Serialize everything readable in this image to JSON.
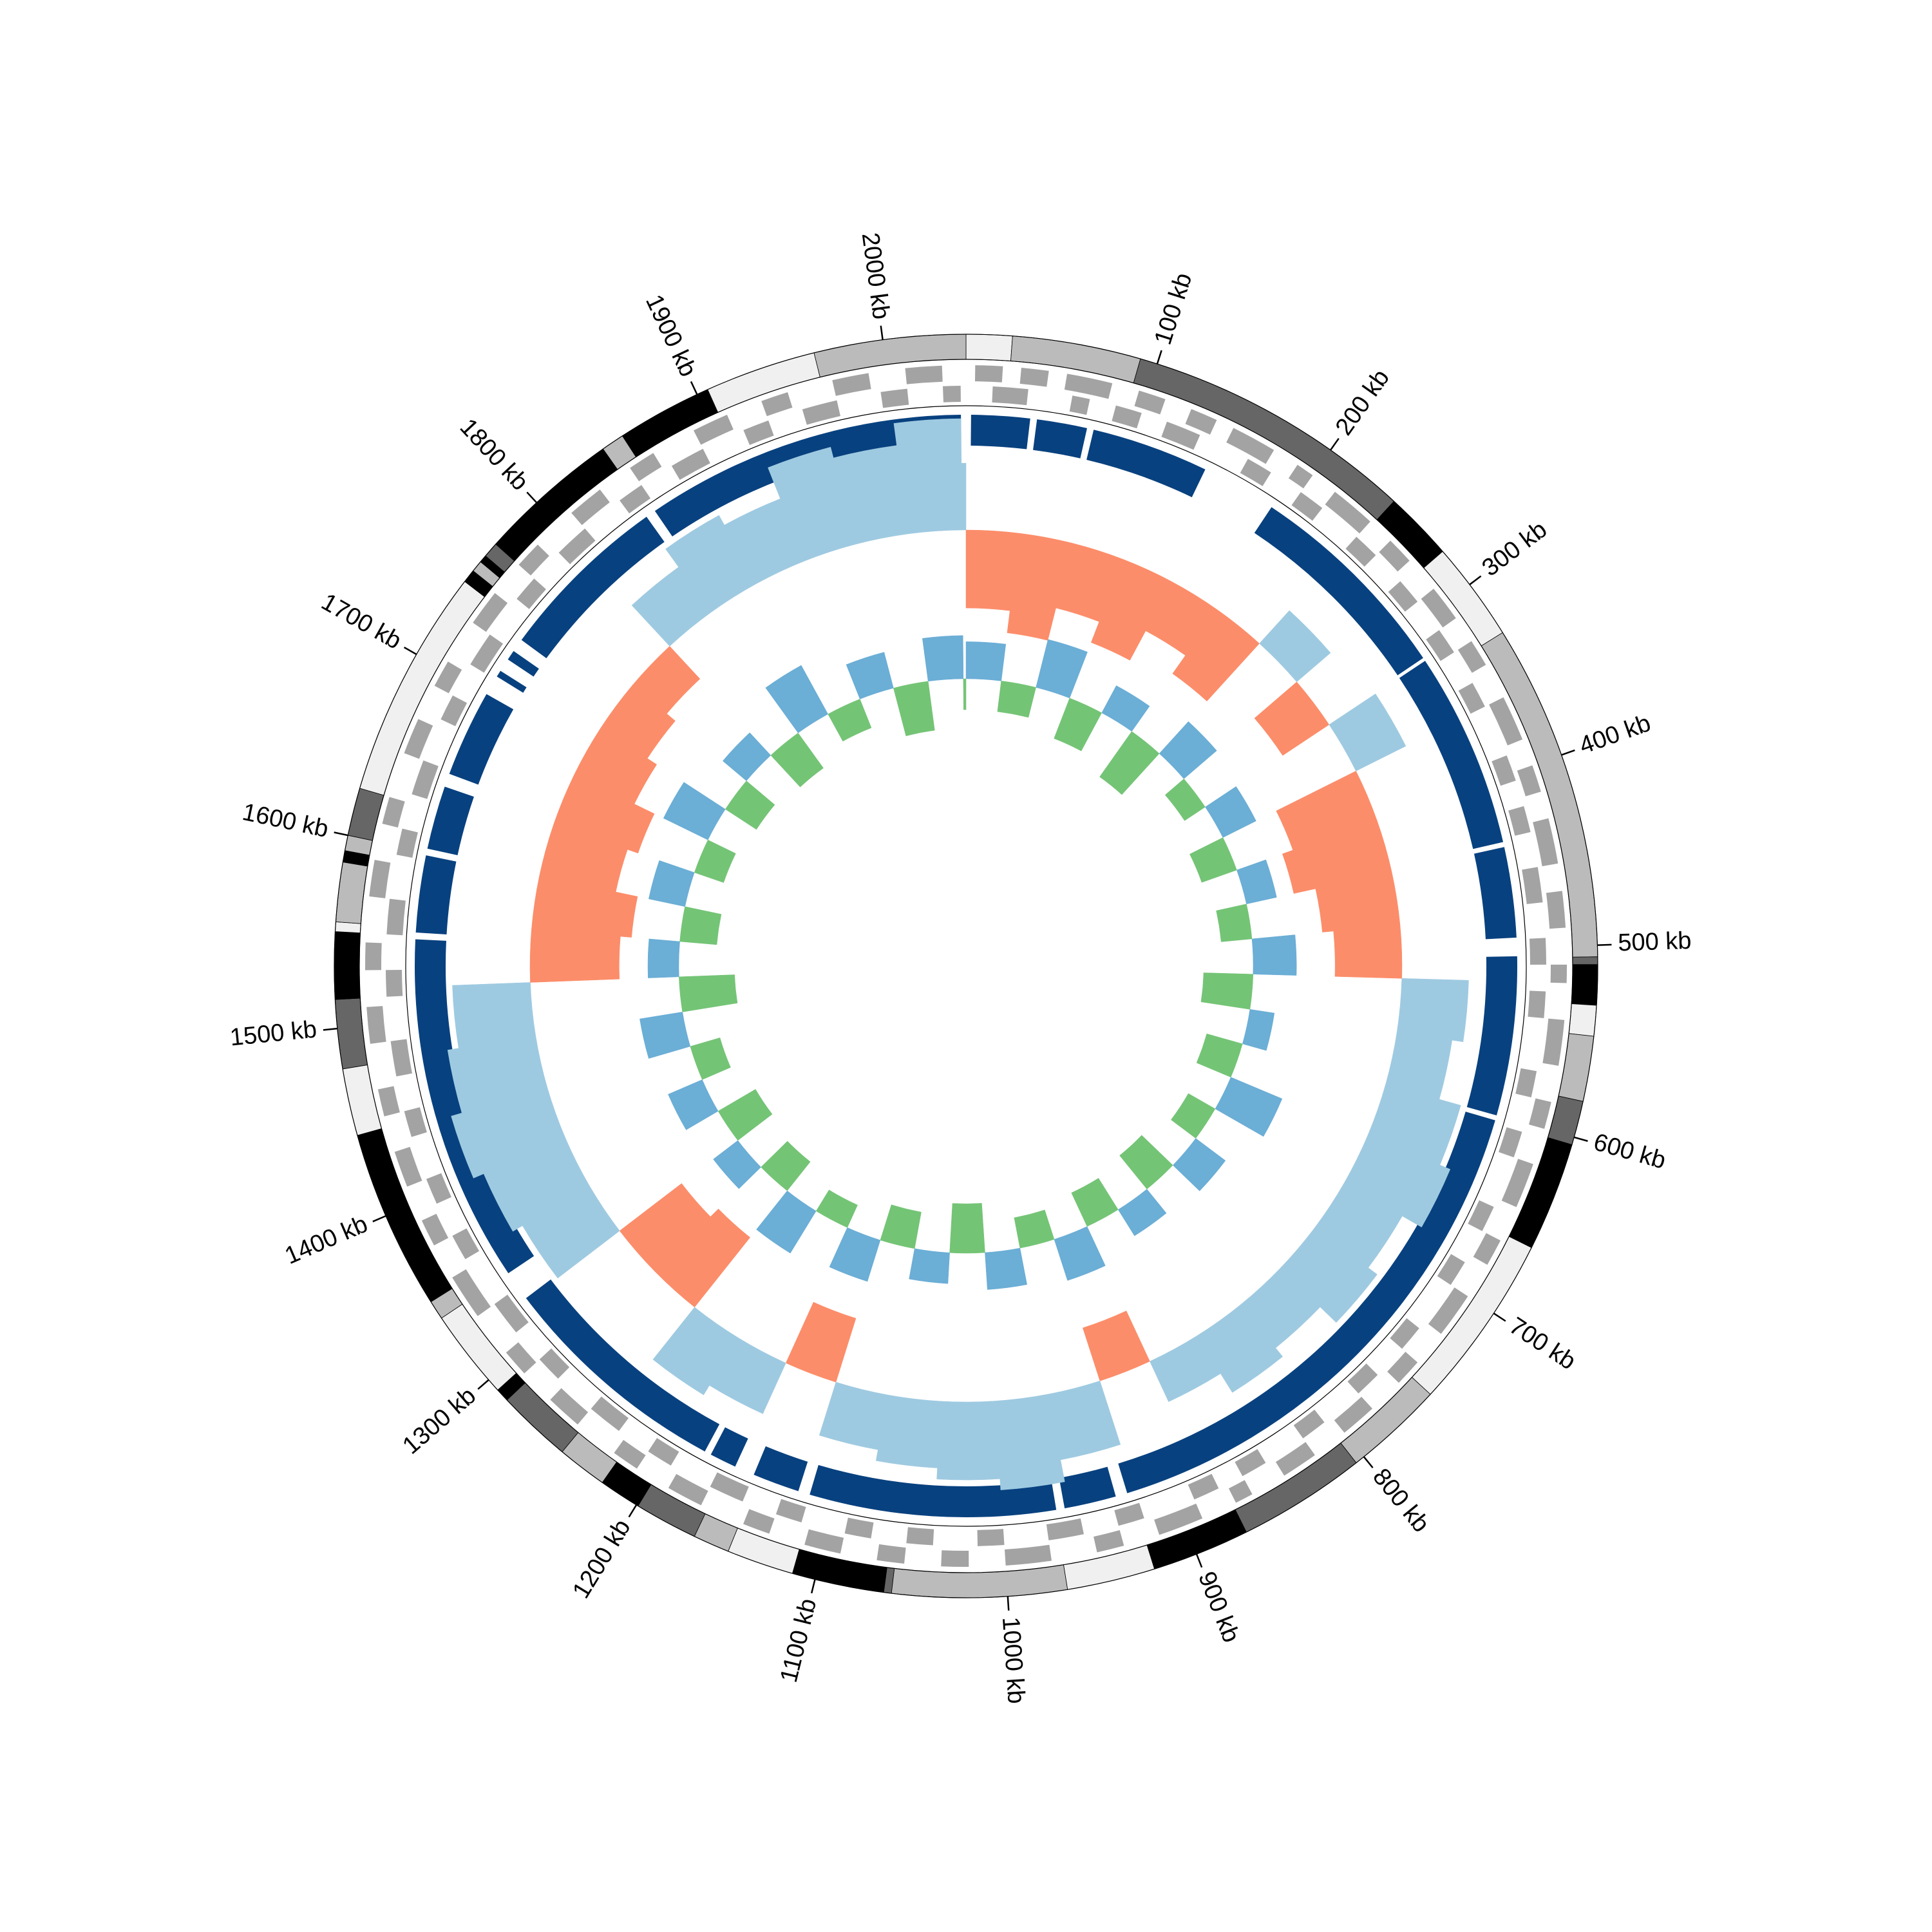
{
  "chart_data": {
    "type": "circos",
    "xlim": [
      0,
      2043
    ],
    "xticks": [
      {
        "value": 100,
        "label": "100 kb"
      },
      {
        "value": 200,
        "label": "200 kb"
      },
      {
        "value": 300,
        "label": "300 kb"
      },
      {
        "value": 400,
        "label": "400 kb"
      },
      {
        "value": 500,
        "label": "500 kb"
      },
      {
        "value": 600,
        "label": "600 kb"
      },
      {
        "value": 700,
        "label": "700 kb"
      },
      {
        "value": 800,
        "label": "800 kb"
      },
      {
        "value": 900,
        "label": "900 kb"
      },
      {
        "value": 1000,
        "label": "1000 kb"
      },
      {
        "value": 1100,
        "label": "1100 kb"
      },
      {
        "value": 1200,
        "label": "1200 kb"
      },
      {
        "value": 1300,
        "label": "1300 kb"
      },
      {
        "value": 1400,
        "label": "1400 kb"
      },
      {
        "value": 1500,
        "label": "1500 kb"
      },
      {
        "value": 1600,
        "label": "1600 kb"
      },
      {
        "value": 1700,
        "label": "1700 kb"
      },
      {
        "value": 1800,
        "label": "1800 kb"
      },
      {
        "value": 1900,
        "label": "1900 kb"
      },
      {
        "value": 2000,
        "label": "2000 kb"
      }
    ],
    "ideogram": [
      {
        "start": 0,
        "end": 24,
        "color": "#f0f0f0"
      },
      {
        "start": 24,
        "end": 91,
        "color": "#bbbbbb"
      },
      {
        "start": 91,
        "end": 242,
        "color": "#666666"
      },
      {
        "start": 242,
        "end": 278,
        "color": "#000000"
      },
      {
        "start": 278,
        "end": 330,
        "color": "#f0f0f0"
      },
      {
        "start": 330,
        "end": 506,
        "color": "#bbbbbb"
      },
      {
        "start": 506,
        "end": 510,
        "color": "#666666"
      },
      {
        "start": 510,
        "end": 531,
        "color": "#000000"
      },
      {
        "start": 531,
        "end": 547,
        "color": "#f0f0f0"
      },
      {
        "start": 547,
        "end": 581,
        "color": "#bbbbbb"
      },
      {
        "start": 581,
        "end": 604,
        "color": "#666666"
      },
      {
        "start": 604,
        "end": 661,
        "color": "#000000"
      },
      {
        "start": 661,
        "end": 753,
        "color": "#f0f0f0"
      },
      {
        "start": 753,
        "end": 805,
        "color": "#bbbbbb"
      },
      {
        "start": 805,
        "end": 872,
        "color": "#666666"
      },
      {
        "start": 872,
        "end": 923,
        "color": "#000000"
      },
      {
        "start": 923,
        "end": 969,
        "color": "#f0f0f0"
      },
      {
        "start": 969,
        "end": 1060,
        "color": "#bbbbbb"
      },
      {
        "start": 1060,
        "end": 1064,
        "color": "#666666"
      },
      {
        "start": 1064,
        "end": 1112,
        "color": "#000000"
      },
      {
        "start": 1112,
        "end": 1147,
        "color": "#f0f0f0"
      },
      {
        "start": 1147,
        "end": 1166,
        "color": "#bbbbbb"
      },
      {
        "start": 1166,
        "end": 1199,
        "color": "#666666"
      },
      {
        "start": 1199,
        "end": 1221,
        "color": "#000000"
      },
      {
        "start": 1221,
        "end": 1247,
        "color": "#bbbbbb"
      },
      {
        "start": 1247,
        "end": 1286,
        "color": "#666666"
      },
      {
        "start": 1286,
        "end": 1293,
        "color": "#000000"
      },
      {
        "start": 1293,
        "end": 1340,
        "color": "#f0f0f0"
      },
      {
        "start": 1340,
        "end": 1350,
        "color": "#bbbbbb"
      },
      {
        "start": 1350,
        "end": 1444,
        "color": "#000000"
      },
      {
        "start": 1444,
        "end": 1479,
        "color": "#f0f0f0"
      },
      {
        "start": 1479,
        "end": 1515,
        "color": "#666666"
      },
      {
        "start": 1515,
        "end": 1550,
        "color": "#000000"
      },
      {
        "start": 1550,
        "end": 1555,
        "color": "#f0f0f0"
      },
      {
        "start": 1555,
        "end": 1586,
        "color": "#bbbbbb"
      },
      {
        "start": 1586,
        "end": 1592,
        "color": "#000000"
      },
      {
        "start": 1592,
        "end": 1600,
        "color": "#bbbbbb"
      },
      {
        "start": 1600,
        "end": 1625,
        "color": "#666666"
      },
      {
        "start": 1625,
        "end": 1745,
        "color": "#f0f0f0"
      },
      {
        "start": 1745,
        "end": 1752,
        "color": "#000000"
      },
      {
        "start": 1752,
        "end": 1758,
        "color": "#bbbbbb"
      },
      {
        "start": 1758,
        "end": 1762,
        "color": "#000000"
      },
      {
        "start": 1762,
        "end": 1770,
        "color": "#666666"
      },
      {
        "start": 1770,
        "end": 1844,
        "color": "#000000"
      },
      {
        "start": 1844,
        "end": 1856,
        "color": "#bbbbbb"
      },
      {
        "start": 1856,
        "end": 1906,
        "color": "#000000"
      },
      {
        "start": 1906,
        "end": 1964,
        "color": "#f0f0f0"
      },
      {
        "start": 1964,
        "end": 2043,
        "color": "#bbbbbb"
      }
    ],
    "forward_genes": {
      "color": "#a3a3a3",
      "segments": [
        [
          5,
          20
        ],
        [
          30,
          45
        ],
        [
          55,
          80
        ],
        [
          95,
          110
        ],
        [
          125,
          140
        ],
        [
          150,
          175
        ],
        [
          190,
          200
        ],
        [
          215,
          240
        ],
        [
          255,
          270
        ],
        [
          290,
          310
        ],
        [
          325,
          340
        ],
        [
          360,
          385
        ],
        [
          400,
          415
        ],
        [
          430,
          455
        ],
        [
          470,
          490
        ],
        [
          510,
          520
        ],
        [
          540,
          565
        ],
        [
          585,
          600
        ],
        [
          620,
          645
        ],
        [
          665,
          680
        ],
        [
          700,
          725
        ],
        [
          745,
          760
        ],
        [
          780,
          800
        ],
        [
          820,
          840
        ],
        [
          860,
          870
        ],
        [
          890,
          915
        ],
        [
          935,
          950
        ],
        [
          975,
          1000
        ],
        [
          1020,
          1035
        ],
        [
          1055,
          1070
        ],
        [
          1090,
          1110
        ],
        [
          1130,
          1145
        ],
        [
          1170,
          1190
        ],
        [
          1210,
          1225
        ],
        [
          1250,
          1270
        ],
        [
          1290,
          1305
        ],
        [
          1330,
          1355
        ],
        [
          1375,
          1390
        ],
        [
          1410,
          1430
        ],
        [
          1450,
          1465
        ],
        [
          1490,
          1510
        ],
        [
          1530,
          1545
        ],
        [
          1570,
          1590
        ],
        [
          1610,
          1625
        ],
        [
          1650,
          1670
        ],
        [
          1690,
          1705
        ],
        [
          1730,
          1750
        ],
        [
          1770,
          1785
        ],
        [
          1810,
          1830
        ],
        [
          1850,
          1865
        ],
        [
          1890,
          1910
        ],
        [
          1930,
          1945
        ],
        [
          1970,
          1990
        ],
        [
          2010,
          2030
        ]
      ]
    },
    "reverse_genes": {
      "color": "#a3a3a3",
      "segments": [
        [
          15,
          35
        ],
        [
          60,
          70
        ],
        [
          85,
          100
        ],
        [
          115,
          135
        ],
        [
          165,
          180
        ],
        [
          200,
          215
        ],
        [
          240,
          255
        ],
        [
          275,
          290
        ],
        [
          310,
          325
        ],
        [
          345,
          360
        ],
        [
          390,
          405
        ],
        [
          420,
          435
        ],
        [
          455,
          475
        ],
        [
          495,
          510
        ],
        [
          525,
          540
        ],
        [
          570,
          585
        ],
        [
          605,
          620
        ],
        [
          650,
          665
        ],
        [
          685,
          700
        ],
        [
          730,
          745
        ],
        [
          765,
          780
        ],
        [
          805,
          820
        ],
        [
          845,
          860
        ],
        [
          875,
          890
        ],
        [
          920,
          935
        ],
        [
          955,
          975
        ],
        [
          1000,
          1015
        ],
        [
          1040,
          1055
        ],
        [
          1075,
          1090
        ],
        [
          1115,
          1130
        ],
        [
          1150,
          1170
        ],
        [
          1195,
          1210
        ],
        [
          1230,
          1250
        ],
        [
          1275,
          1290
        ],
        [
          1310,
          1330
        ],
        [
          1360,
          1375
        ],
        [
          1395,
          1410
        ],
        [
          1435,
          1450
        ],
        [
          1470,
          1490
        ],
        [
          1515,
          1530
        ],
        [
          1550,
          1570
        ],
        [
          1595,
          1610
        ],
        [
          1630,
          1650
        ],
        [
          1675,
          1690
        ],
        [
          1710,
          1730
        ],
        [
          1755,
          1770
        ],
        [
          1790,
          1810
        ],
        [
          1835,
          1850
        ],
        [
          1870,
          1890
        ],
        [
          1915,
          1930
        ],
        [
          1950,
          1970
        ],
        [
          1995,
          2010
        ],
        [
          2030,
          2040
        ]
      ]
    },
    "contigs": {
      "color": "#08417f",
      "segments": [
        [
          3,
          38
        ],
        [
          42,
          72
        ],
        [
          76,
          146
        ],
        [
          191,
          318
        ],
        [
          320,
          437
        ],
        [
          440,
          494
        ],
        [
          505,
          600
        ],
        [
          603,
          925
        ],
        [
          932,
          963
        ],
        [
          968,
          1115
        ],
        [
          1122,
          1150
        ],
        [
          1162,
          1178
        ],
        [
          1182,
          1322
        ],
        [
          1340,
          1548
        ],
        [
          1552,
          1598
        ],
        [
          1602,
          1640
        ],
        [
          1648,
          1700
        ],
        [
          1712,
          1716
        ],
        [
          1724,
          1730
        ],
        [
          1738,
          1842
        ],
        [
          1848,
          2040
        ]
      ]
    },
    "gc_skew": {
      "positive_color": "#9ecae1",
      "negative_color": "#fc8d6a",
      "x": [
        0,
        40,
        80,
        120,
        160,
        200,
        240,
        280,
        320,
        360,
        400,
        440,
        480,
        520,
        560,
        600,
        640,
        680,
        720,
        760,
        800,
        840,
        880,
        920,
        960,
        1000,
        1040,
        1080,
        1120,
        1160,
        1200,
        1240,
        1280,
        1320,
        1360,
        1400,
        1440,
        1480,
        1520,
        1560,
        1600,
        1640,
        1680,
        1720,
        1760,
        1800,
        1840,
        1880,
        1920,
        1960,
        2000,
        2040
      ],
      "values": [
        -0.7,
        -0.9,
        -0.6,
        -0.8,
        -0.5,
        -0.7,
        0.4,
        -0.5,
        0.5,
        -0.8,
        -0.9,
        -0.7,
        -0.6,
        0.6,
        0.5,
        0.7,
        0.8,
        0.6,
        0.7,
        0.5,
        0.6,
        0.4,
        -0.5,
        0.6,
        0.8,
        0.7,
        0.6,
        0.5,
        -0.6,
        0.5,
        0.6,
        -0.8,
        -0.7,
        0.7,
        0.8,
        0.9,
        0.8,
        0.7,
        -0.8,
        -0.9,
        -0.7,
        -0.8,
        -0.6,
        -0.5,
        -0.4,
        0.5,
        0.7,
        0.6,
        0.9,
        0.8,
        1.0,
        0.6
      ]
    },
    "gc_content": {
      "positive_color": "#6baed6",
      "negative_color": "#74c476",
      "x": [
        0,
        40,
        80,
        120,
        160,
        200,
        240,
        280,
        320,
        360,
        400,
        440,
        480,
        520,
        560,
        600,
        640,
        680,
        720,
        760,
        800,
        840,
        880,
        920,
        960,
        1000,
        1040,
        1080,
        1120,
        1160,
        1200,
        1240,
        1280,
        1320,
        1360,
        1400,
        1440,
        1480,
        1520,
        1560,
        1600,
        1640,
        1680,
        1720,
        1760,
        1800,
        1840,
        1880,
        1920,
        1960,
        2000,
        2040
      ],
      "values": [
        0.6,
        -0.5,
        0.8,
        -0.7,
        0.5,
        -0.9,
        0.7,
        -0.4,
        0.6,
        -0.6,
        0.5,
        -0.5,
        0.7,
        -0.8,
        0.4,
        -0.6,
        0.9,
        -0.5,
        0.6,
        -0.7,
        0.5,
        -0.6,
        0.7,
        -0.5,
        0.6,
        -0.8,
        0.5,
        -0.6,
        0.7,
        -0.4,
        0.8,
        -0.6,
        0.5,
        -0.7,
        0.6,
        -0.5,
        0.7,
        -0.9,
        0.5,
        -0.6,
        0.6,
        -0.5,
        0.8,
        -0.6,
        0.5,
        -0.7,
        0.9,
        -0.5,
        0.6,
        -0.8,
        0.7,
        -0.5
      ]
    }
  }
}
